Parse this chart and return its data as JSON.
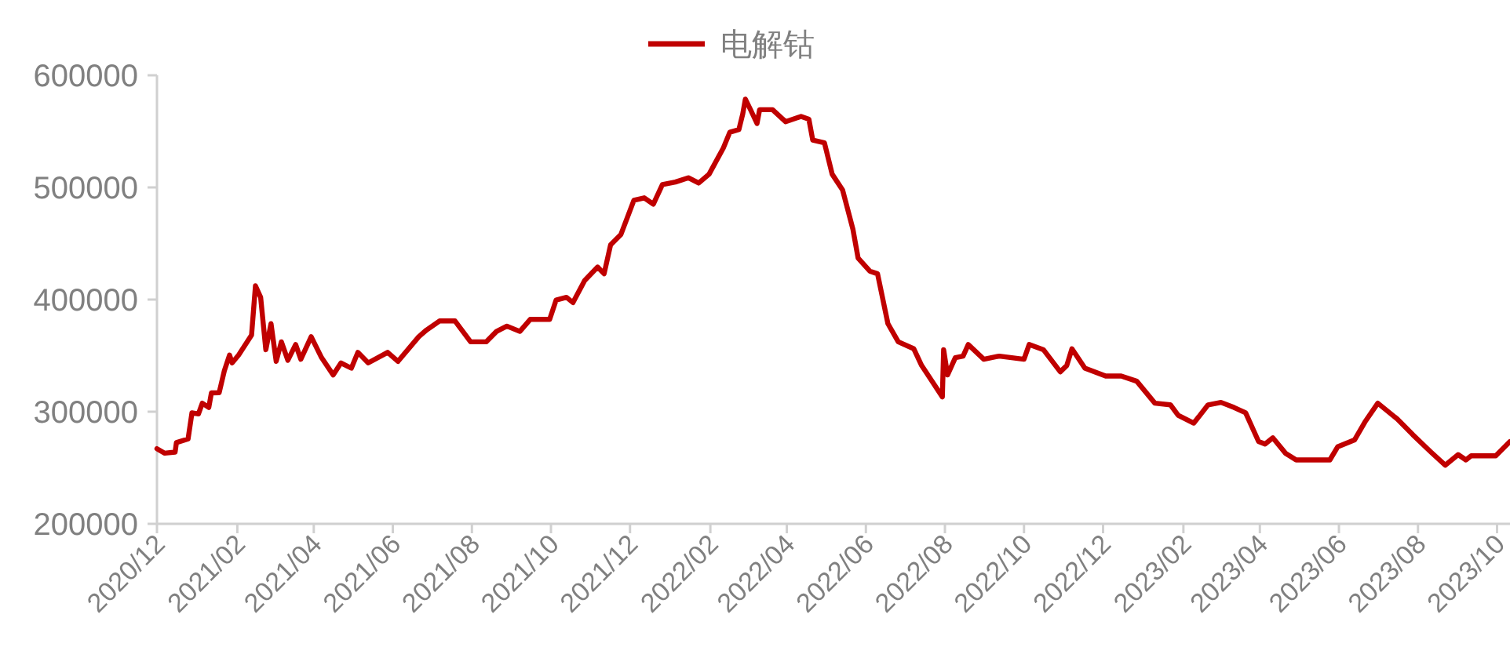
{
  "chart_data": {
    "type": "line",
    "legend": "top",
    "x": [
      "2020-12-01",
      "2020-12-07",
      "2020-12-15",
      "2020-12-16",
      "2020-12-25",
      "2020-12-28",
      "2021-01-02",
      "2021-01-05",
      "2021-01-10",
      "2021-01-12",
      "2021-01-18",
      "2021-01-22",
      "2021-01-26",
      "2021-01-28",
      "2021-02-02",
      "2021-02-12",
      "2021-02-15",
      "2021-02-19",
      "2021-02-23",
      "2021-02-27",
      "2021-03-03",
      "2021-03-07",
      "2021-03-12",
      "2021-03-18",
      "2021-03-22",
      "2021-03-30",
      "2021-04-07",
      "2021-04-16",
      "2021-04-22",
      "2021-04-30",
      "2021-05-05",
      "2021-05-13",
      "2021-05-28",
      "2021-06-05",
      "2021-06-21",
      "2021-06-27",
      "2021-07-07",
      "2021-07-19",
      "2021-07-31",
      "2021-08-12",
      "2021-08-20",
      "2021-08-28",
      "2021-09-07",
      "2021-09-15",
      "2021-09-30",
      "2021-10-05",
      "2021-10-13",
      "2021-10-18",
      "2021-10-27",
      "2021-11-06",
      "2021-11-11",
      "2021-11-16",
      "2021-11-24",
      "2021-12-04",
      "2021-12-12",
      "2021-12-19",
      "2021-12-26",
      "2022-01-05",
      "2022-01-15",
      "2022-01-23",
      "2022-01-31",
      "2022-02-11",
      "2022-02-16",
      "2022-02-23",
      "2022-02-26",
      "2022-02-28",
      "2022-03-04",
      "2022-03-09",
      "2022-03-11",
      "2022-03-21",
      "2022-03-31",
      "2022-04-12",
      "2022-04-18",
      "2022-04-21",
      "2022-04-30",
      "2022-05-06",
      "2022-05-14",
      "2022-05-22",
      "2022-05-26",
      "2022-06-04",
      "2022-06-10",
      "2022-06-18",
      "2022-06-26",
      "2022-07-08",
      "2022-07-14",
      "2022-07-22",
      "2022-07-30",
      "2022-07-31",
      "2022-08-03",
      "2022-08-09",
      "2022-08-15",
      "2022-08-19",
      "2022-08-31",
      "2022-09-12",
      "2022-10-01",
      "2022-10-05",
      "2022-10-16",
      "2022-10-29",
      "2022-11-03",
      "2022-11-07",
      "2022-11-17",
      "2022-12-03",
      "2022-12-15",
      "2022-12-27",
      "2023-01-06",
      "2023-01-10",
      "2023-01-22",
      "2023-01-28",
      "2023-02-09",
      "2023-02-20",
      "2023-03-02",
      "2023-03-12",
      "2023-03-21",
      "2023-03-31",
      "2023-04-05",
      "2023-04-11",
      "2023-04-21",
      "2023-04-29",
      "2023-05-25",
      "2023-05-31",
      "2023-06-13",
      "2023-06-21",
      "2023-07-01",
      "2023-07-16",
      "2023-07-28",
      "2023-08-11",
      "2023-08-22",
      "2023-09-01",
      "2023-09-07",
      "2023-09-11",
      "2023-09-30",
      "2023-10-11"
    ],
    "series": [
      {
        "name": "电解钴",
        "color": "#c00000",
        "values": [
          267000,
          263000,
          264000,
          272500,
          275700,
          299000,
          298000,
          307600,
          303800,
          316800,
          317000,
          336500,
          350500,
          343500,
          350500,
          368300,
          412200,
          402000,
          355300,
          378500,
          344900,
          362300,
          345900,
          359900,
          346800,
          366900,
          348200,
          332800,
          343500,
          338800,
          352900,
          343500,
          352900,
          344900,
          366900,
          372900,
          380900,
          380900,
          362300,
          362300,
          371600,
          376300,
          371600,
          382300,
          382300,
          399600,
          402000,
          397300,
          417000,
          429000,
          423000,
          448700,
          458100,
          488500,
          490700,
          485100,
          502500,
          504800,
          508600,
          503900,
          511800,
          535200,
          549200,
          551600,
          565600,
          578700,
          569300,
          557000,
          569300,
          569300,
          558600,
          563300,
          560900,
          542200,
          539800,
          511800,
          497800,
          462700,
          437000,
          425400,
          423000,
          378500,
          362300,
          356100,
          341200,
          327200,
          313200,
          355300,
          332800,
          348200,
          349600,
          359900,
          346800,
          349600,
          346800,
          359900,
          355300,
          335600,
          341200,
          356100,
          338800,
          331800,
          331800,
          327200,
          313200,
          307600,
          306100,
          296800,
          289800,
          306100,
          308300,
          303800,
          299000,
          273400,
          271100,
          276700,
          262700,
          257000,
          257000,
          268700,
          274800,
          290700,
          307600,
          293500,
          279500,
          264000,
          252300,
          261700,
          257000,
          260700,
          260700,
          273400
        ]
      }
    ],
    "xlim": [
      "2020-12-01",
      "2023-10-11"
    ],
    "xticks": [
      {
        "value": "2020-12",
        "label": "2020/12"
      },
      {
        "value": "2021-02",
        "label": "2021/02"
      },
      {
        "value": "2021-04",
        "label": "2021/04"
      },
      {
        "value": "2021-06",
        "label": "2021/06"
      },
      {
        "value": "2021-08",
        "label": "2021/08"
      },
      {
        "value": "2021-10",
        "label": "2021/10"
      },
      {
        "value": "2021-12",
        "label": "2021/12"
      },
      {
        "value": "2022-02",
        "label": "2022/02"
      },
      {
        "value": "2022-04",
        "label": "2022/04"
      },
      {
        "value": "2022-06",
        "label": "2022/06"
      },
      {
        "value": "2022-08",
        "label": "2022/08"
      },
      {
        "value": "2022-10",
        "label": "2022/10"
      },
      {
        "value": "2022-12",
        "label": "2022/12"
      },
      {
        "value": "2023-02",
        "label": "2023/02"
      },
      {
        "value": "2023-04",
        "label": "2023/04"
      },
      {
        "value": "2023-06",
        "label": "2023/06"
      },
      {
        "value": "2023-08",
        "label": "2023/08"
      },
      {
        "value": "2023-10",
        "label": "2023/10"
      }
    ],
    "ylim": [
      200000,
      600000
    ],
    "yticks": [
      200000,
      300000,
      400000,
      500000,
      600000
    ]
  }
}
